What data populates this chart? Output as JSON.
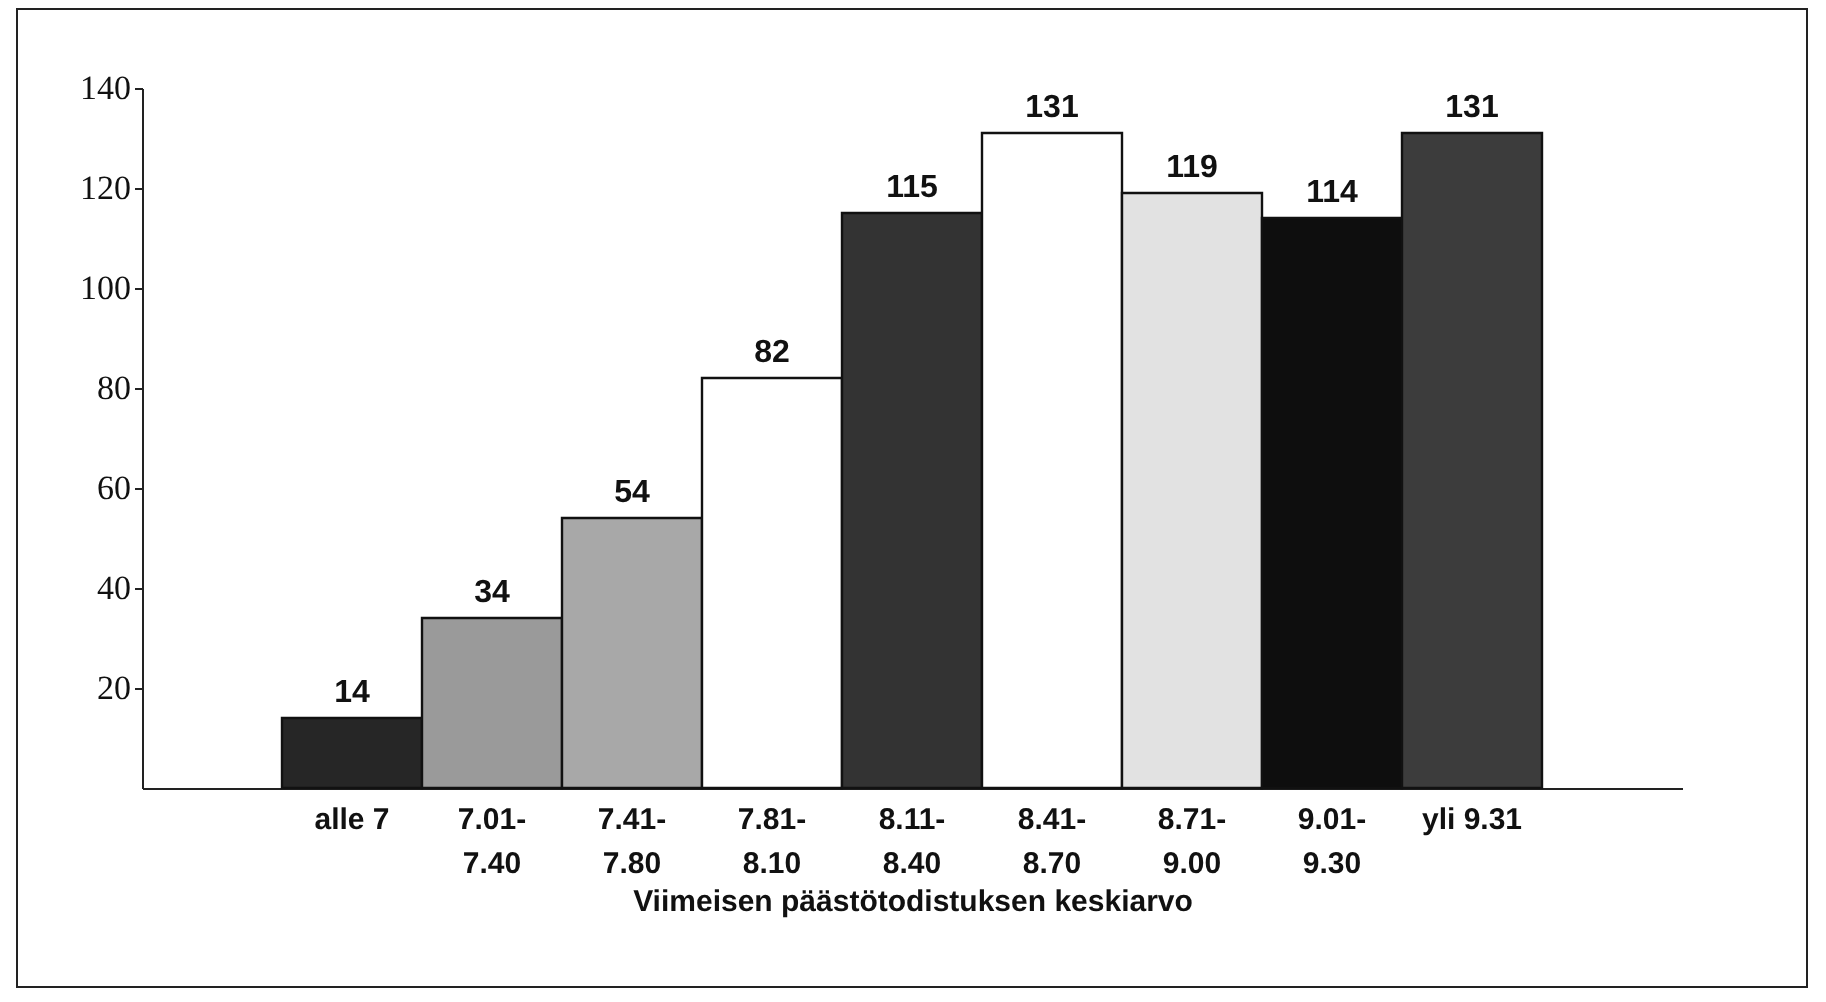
{
  "chart_data": {
    "type": "bar",
    "xlabel": "Viimeisen päästötodistuksen keskiarvo",
    "categories": [
      "alle 7",
      "7.01-\n7.40",
      "7.41-\n7.80",
      "7.81-\n8.10",
      "8.11-\n8.40",
      "8.41-\n8.70",
      "8.71-\n9.00",
      "9.01-\n9.30",
      "yli 9.31"
    ],
    "values": [
      14,
      34,
      54,
      82,
      115,
      131,
      119,
      114,
      131
    ],
    "colors": [
      "#262626",
      "#9a9a9a",
      "#a8a8a8",
      "#ffffff",
      "#333333",
      "#ffffff",
      "#e2e2e2",
      "#0e0e0e",
      "#3c3c3c"
    ],
    "ylim": [
      0,
      140
    ],
    "yticks": [
      20,
      40,
      60,
      80,
      100,
      120,
      140
    ],
    "data_labels": true
  }
}
